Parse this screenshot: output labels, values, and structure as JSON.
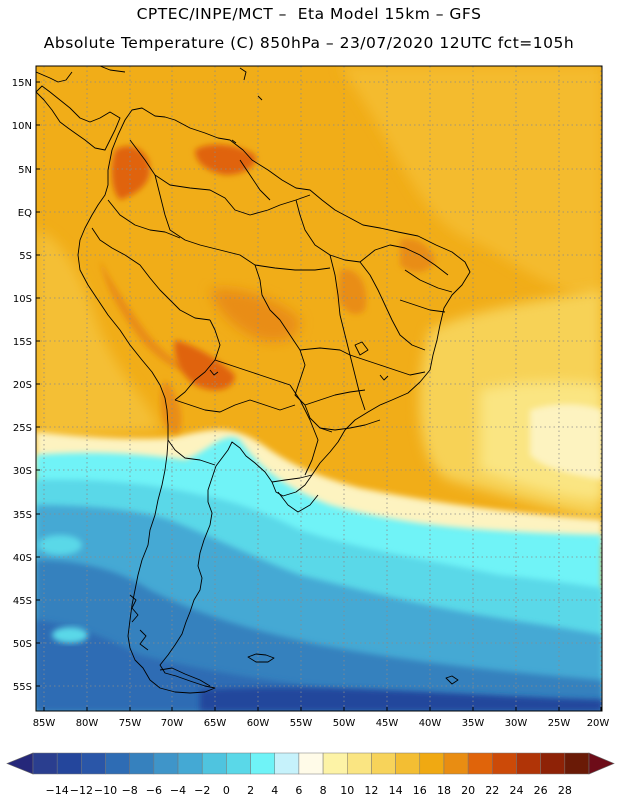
{
  "header": {
    "line1": "CPTEC/INPE/MCT –  Eta Model 15km – GFS",
    "line2": "Absolute Temperature (C) 850hPa – 23/07/2020 12UTC fct=105h"
  },
  "map": {
    "lat_labels": [
      "15N",
      "10N",
      "5N",
      "EQ",
      "5S",
      "10S",
      "15S",
      "20S",
      "25S",
      "30S",
      "35S",
      "40S",
      "45S",
      "50S",
      "55S"
    ],
    "lon_labels": [
      "85W",
      "80W",
      "75W",
      "70W",
      "65W",
      "60W",
      "55W",
      "50W",
      "45W",
      "40W",
      "35W",
      "30W",
      "25W",
      "20W"
    ],
    "lat_range": [
      -57,
      17
    ],
    "lon_range": [
      -86,
      -20
    ],
    "grid": "dotted",
    "coastline_color": "#000000"
  },
  "colorbar": {
    "levels": [
      "-14",
      "-12",
      "-10",
      "-8",
      "-6",
      "-4",
      "-2",
      "0",
      "2",
      "4",
      "6",
      "8",
      "10",
      "12",
      "14",
      "16",
      "18",
      "20",
      "22",
      "24",
      "26",
      "28"
    ],
    "colors": [
      "#2a3e8f",
      "#24469c",
      "#2a56a8",
      "#2e6cb4",
      "#3681be",
      "#3f95c9",
      "#44a9d4",
      "#4fc4df",
      "#5ad8e8",
      "#6ff3f7",
      "#c6f2fb",
      "#fffbe8",
      "#fdf3a6",
      "#fae582",
      "#f7d35a",
      "#f3be33",
      "#f0a912",
      "#e98d12",
      "#e0640a",
      "#cc4a08",
      "#b03407",
      "#8e2206",
      "#6a1a06"
    ],
    "left_arrow_color": "#25287a",
    "right_arrow_color": "#6d0c18"
  }
}
